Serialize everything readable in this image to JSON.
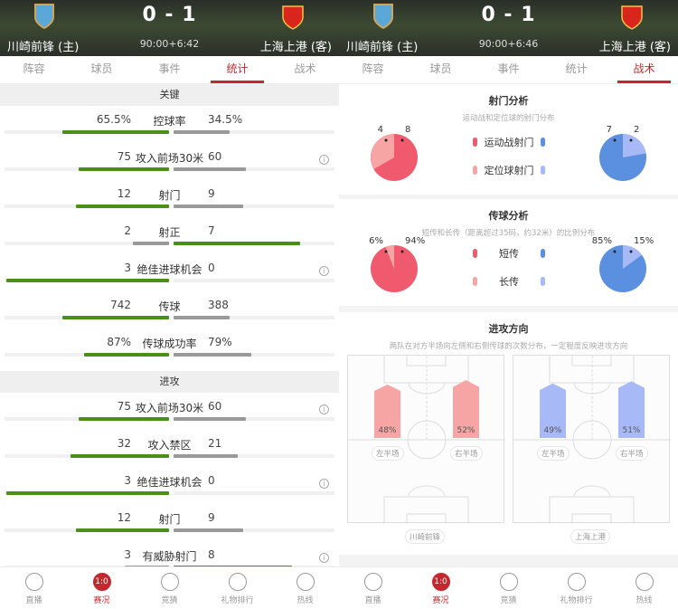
{
  "colors": {
    "accent": "#c3282f",
    "win": "#4a8f17",
    "lose": "#999999",
    "home_main": "#f05a6e",
    "home_light": "#f7a4a4",
    "away_main": "#5b8fe0",
    "away_light": "#a7b9f7"
  },
  "left": {
    "header": {
      "score": "0 - 1",
      "home": "川崎前锋 (主)",
      "away": "上海上港 (客)",
      "clock": "90:00+6:42"
    },
    "tabs": [
      "阵容",
      "球员",
      "事件",
      "统计",
      "战术"
    ],
    "active_tab": 3,
    "sections": [
      {
        "title": "关键",
        "rows": [
          {
            "label": "控球率",
            "home": "65.5%",
            "away": "34.5%",
            "h": 65.5,
            "a": 34.5,
            "info": false
          },
          {
            "label": "攻入前场30米",
            "home": "75",
            "away": "60",
            "h": 75,
            "a": 60,
            "info": true
          },
          {
            "label": "射门",
            "home": "12",
            "away": "9",
            "h": 12,
            "a": 9,
            "info": false
          },
          {
            "label": "射正",
            "home": "2",
            "away": "7",
            "h": 2,
            "a": 7,
            "info": false
          },
          {
            "label": "绝佳进球机会",
            "home": "3",
            "away": "0",
            "h": 3,
            "a": 0,
            "info": true
          },
          {
            "label": "传球",
            "home": "742",
            "away": "388",
            "h": 742,
            "a": 388,
            "info": false
          },
          {
            "label": "传球成功率",
            "home": "87%",
            "away": "79%",
            "h": 87,
            "a": 79,
            "info": false
          }
        ]
      },
      {
        "title": "进攻",
        "rows": [
          {
            "label": "攻入前场30米",
            "home": "75",
            "away": "60",
            "h": 75,
            "a": 60,
            "info": true
          },
          {
            "label": "攻入禁区",
            "home": "32",
            "away": "21",
            "h": 32,
            "a": 21,
            "info": false
          },
          {
            "label": "绝佳进球机会",
            "home": "3",
            "away": "0",
            "h": 3,
            "a": 0,
            "info": true
          },
          {
            "label": "射门",
            "home": "12",
            "away": "9",
            "h": 12,
            "a": 9,
            "info": false
          },
          {
            "label": "有威胁射门",
            "home": "3",
            "away": "8",
            "h": 3,
            "a": 8,
            "info": true
          }
        ]
      }
    ]
  },
  "right": {
    "header": {
      "score": "0 - 1",
      "home": "川崎前锋 (主)",
      "away": "上海上港 (客)",
      "clock": "90:00+6:46"
    },
    "tabs": [
      "阵容",
      "球员",
      "事件",
      "统计",
      "战术"
    ],
    "active_tab": 4,
    "shots": {
      "title": "射门分析",
      "subtitle": "运动战和定位球的射门分布",
      "legend": [
        "运动战射门",
        "定位球射门"
      ],
      "home": {
        "main": 8,
        "light": 4,
        "main_label": "8",
        "light_label": "4"
      },
      "away": {
        "main": 7,
        "light": 2,
        "main_label": "7",
        "light_label": "2"
      }
    },
    "passes": {
      "title": "传球分析",
      "subtitle": "短传和长传（距离超过35码，约32米）的比例分布",
      "legend": [
        "短传",
        "长传"
      ],
      "home": {
        "main": 94,
        "light": 6,
        "main_label": "94%",
        "light_label": "6%"
      },
      "away": {
        "main": 85,
        "light": 15,
        "main_label": "85%",
        "light_label": "15%"
      }
    },
    "attack": {
      "title": "进攻方向",
      "subtitle": "两队在对方半场向左侧和右侧传球的次数分布，一定程度反映进攻方向",
      "left_label": "左半场",
      "right_label": "右半场",
      "home": {
        "team": "川崎前锋",
        "left": "48%",
        "right": "52%",
        "lv": 48,
        "rv": 52
      },
      "away": {
        "team": "上海上港",
        "left": "49%",
        "right": "51%",
        "lv": 49,
        "rv": 51
      }
    }
  },
  "nav": [
    {
      "label": "直播",
      "icon": "play-icon"
    },
    {
      "label": "赛况",
      "icon": "score-badge-icon",
      "badge": "1:0"
    },
    {
      "label": "竞猜",
      "icon": "bean-icon"
    },
    {
      "label": "礼物排行",
      "icon": "gift-icon"
    },
    {
      "label": "热线",
      "icon": "chat-icon"
    }
  ],
  "active_nav": 1
}
